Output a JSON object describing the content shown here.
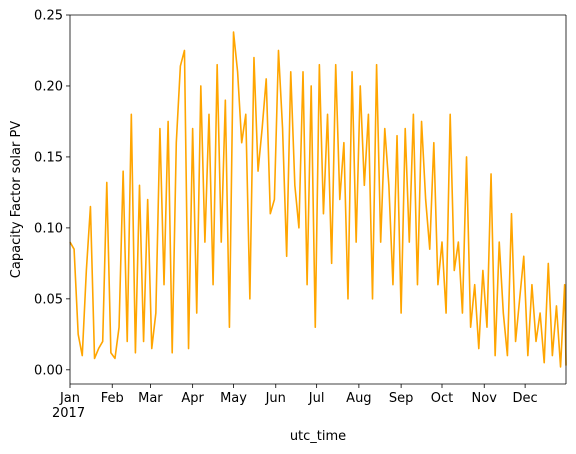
{
  "chart_data": {
    "type": "line",
    "title": "",
    "xlabel": "utc_time",
    "ylabel": "Capacity Factor solar PV",
    "year_label": "2017",
    "x_tick_labels": [
      "Jan",
      "Feb",
      "Mar",
      "Apr",
      "May",
      "Jun",
      "Jul",
      "Aug",
      "Sep",
      "Oct",
      "Nov",
      "Dec"
    ],
    "y_tick_labels": [
      "0.00",
      "0.05",
      "0.10",
      "0.15",
      "0.20",
      "0.25"
    ],
    "ylim": [
      -0.01,
      0.25
    ],
    "xlim": [
      "2017-01-01",
      "2017-12-31"
    ],
    "grid": false,
    "series": [
      {
        "color": "#ffa500",
        "x": [
          "2017-01-01",
          "2017-01-04",
          "2017-01-07",
          "2017-01-10",
          "2017-01-13",
          "2017-01-16",
          "2017-01-19",
          "2017-01-22",
          "2017-01-25",
          "2017-01-28",
          "2017-01-31",
          "2017-02-03",
          "2017-02-06",
          "2017-02-09",
          "2017-02-12",
          "2017-02-15",
          "2017-02-18",
          "2017-02-21",
          "2017-02-24",
          "2017-02-27",
          "2017-03-02",
          "2017-03-05",
          "2017-03-08",
          "2017-03-11",
          "2017-03-14",
          "2017-03-17",
          "2017-03-20",
          "2017-03-23",
          "2017-03-26",
          "2017-03-29",
          "2017-04-01",
          "2017-04-04",
          "2017-04-07",
          "2017-04-10",
          "2017-04-13",
          "2017-04-16",
          "2017-04-19",
          "2017-04-22",
          "2017-04-25",
          "2017-04-28",
          "2017-05-01",
          "2017-05-04",
          "2017-05-07",
          "2017-05-10",
          "2017-05-13",
          "2017-05-16",
          "2017-05-19",
          "2017-05-22",
          "2017-05-25",
          "2017-05-28",
          "2017-05-31",
          "2017-06-03",
          "2017-06-06",
          "2017-06-09",
          "2017-06-12",
          "2017-06-15",
          "2017-06-18",
          "2017-06-21",
          "2017-06-24",
          "2017-06-27",
          "2017-06-30",
          "2017-07-03",
          "2017-07-06",
          "2017-07-09",
          "2017-07-12",
          "2017-07-15",
          "2017-07-18",
          "2017-07-21",
          "2017-07-24",
          "2017-07-27",
          "2017-07-30",
          "2017-08-02",
          "2017-08-05",
          "2017-08-08",
          "2017-08-11",
          "2017-08-14",
          "2017-08-17",
          "2017-08-20",
          "2017-08-23",
          "2017-08-26",
          "2017-08-29",
          "2017-09-01",
          "2017-09-04",
          "2017-09-07",
          "2017-09-10",
          "2017-09-13",
          "2017-09-16",
          "2017-09-19",
          "2017-09-22",
          "2017-09-25",
          "2017-09-28",
          "2017-10-01",
          "2017-10-04",
          "2017-10-07",
          "2017-10-10",
          "2017-10-13",
          "2017-10-16",
          "2017-10-19",
          "2017-10-22",
          "2017-10-25",
          "2017-10-28",
          "2017-10-31",
          "2017-11-03",
          "2017-11-06",
          "2017-11-09",
          "2017-11-12",
          "2017-11-15",
          "2017-11-18",
          "2017-11-21",
          "2017-11-24",
          "2017-11-27",
          "2017-11-30",
          "2017-12-03",
          "2017-12-06",
          "2017-12-09",
          "2017-12-12",
          "2017-12-15",
          "2017-12-18",
          "2017-12-21",
          "2017-12-24",
          "2017-12-27",
          "2017-12-30",
          "2017-12-31"
        ],
        "values": [
          0.09,
          0.085,
          0.025,
          0.01,
          0.07,
          0.115,
          0.008,
          0.015,
          0.02,
          0.132,
          0.012,
          0.008,
          0.03,
          0.14,
          0.02,
          0.18,
          0.012,
          0.13,
          0.02,
          0.12,
          0.015,
          0.04,
          0.17,
          0.06,
          0.175,
          0.012,
          0.16,
          0.214,
          0.225,
          0.015,
          0.17,
          0.04,
          0.2,
          0.09,
          0.18,
          0.06,
          0.215,
          0.09,
          0.19,
          0.03,
          0.238,
          0.21,
          0.16,
          0.18,
          0.05,
          0.22,
          0.14,
          0.17,
          0.205,
          0.11,
          0.12,
          0.225,
          0.17,
          0.08,
          0.21,
          0.13,
          0.1,
          0.21,
          0.06,
          0.2,
          0.03,
          0.215,
          0.11,
          0.18,
          0.075,
          0.215,
          0.12,
          0.16,
          0.05,
          0.21,
          0.09,
          0.2,
          0.13,
          0.18,
          0.05,
          0.215,
          0.09,
          0.17,
          0.13,
          0.06,
          0.165,
          0.04,
          0.17,
          0.09,
          0.18,
          0.06,
          0.175,
          0.12,
          0.085,
          0.16,
          0.06,
          0.09,
          0.04,
          0.18,
          0.07,
          0.09,
          0.04,
          0.15,
          0.03,
          0.06,
          0.015,
          0.07,
          0.03,
          0.138,
          0.01,
          0.09,
          0.04,
          0.01,
          0.11,
          0.02,
          0.05,
          0.08,
          0.01,
          0.06,
          0.02,
          0.04,
          0.005,
          0.075,
          0.01,
          0.045,
          0.002,
          0.06,
          0.003
        ]
      }
    ]
  }
}
